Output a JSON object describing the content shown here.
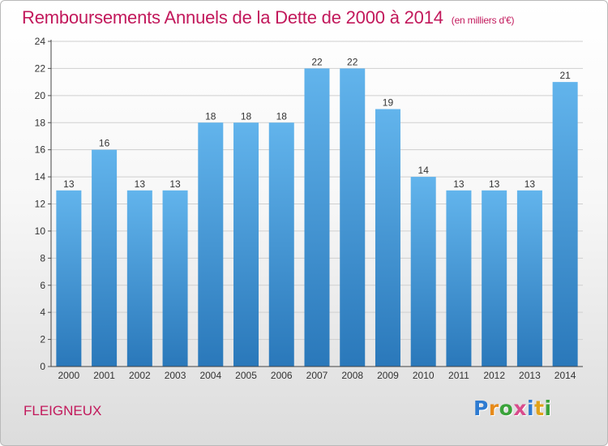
{
  "title": "Remboursements Annuels de la Dette de 2000 à 2014",
  "unit_note": "(en milliers d'€)",
  "location": "FLEIGNEUX",
  "logo": {
    "text": "Proxiti",
    "letter_colors": [
      "#2e7bd1",
      "#e68a1a",
      "#3aa33a",
      "#d94c8c",
      "#2e7bd1",
      "#e0a21a",
      "#3aa33a"
    ]
  },
  "colors": {
    "bar_top": "#62b4ec",
    "bar_bottom": "#2a78ba",
    "title": "#c2185b",
    "grid": "#cfcfcf"
  },
  "chart_data": {
    "type": "bar",
    "categories": [
      "2000",
      "2001",
      "2002",
      "2003",
      "2004",
      "2005",
      "2006",
      "2007",
      "2008",
      "2009",
      "2010",
      "2011",
      "2012",
      "2013",
      "2014"
    ],
    "values": [
      13,
      16,
      13,
      13,
      18,
      18,
      18,
      22,
      22,
      19,
      14,
      13,
      13,
      13,
      21
    ],
    "title": "Remboursements Annuels de la Dette de 2000 à 2014",
    "xlabel": "",
    "ylabel": "",
    "ylim": [
      0,
      24
    ],
    "yticks": [
      0,
      2,
      4,
      6,
      8,
      10,
      12,
      14,
      16,
      18,
      20,
      22,
      24
    ],
    "grid": true,
    "legend": "none",
    "data_labels": true
  }
}
